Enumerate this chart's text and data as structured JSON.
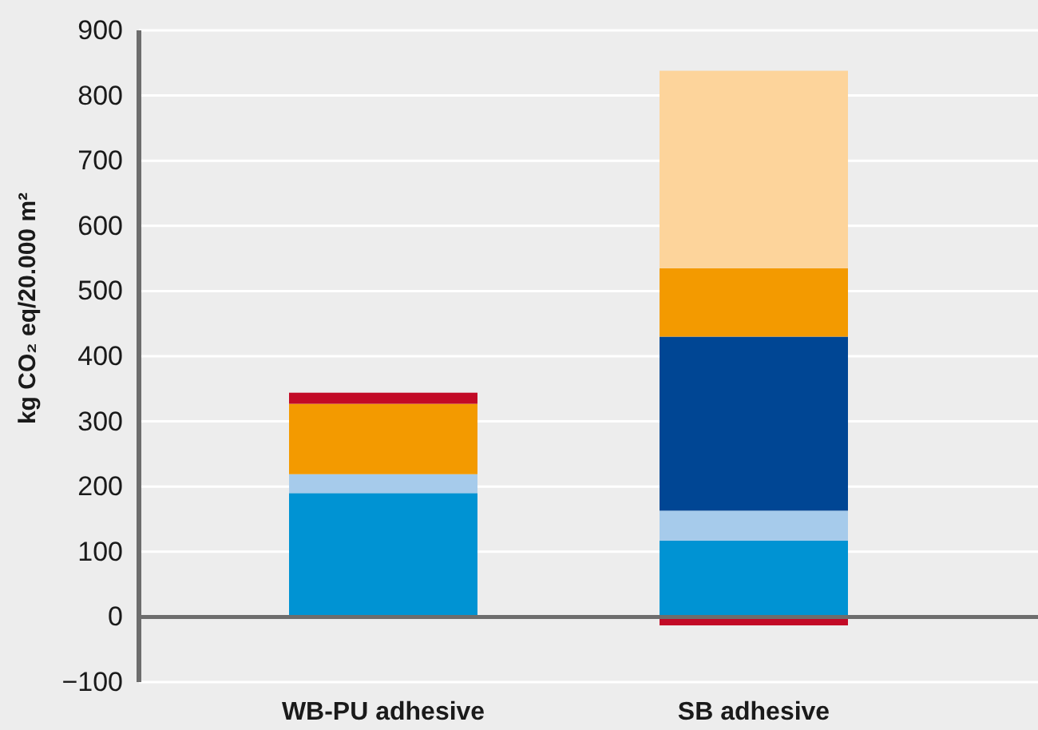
{
  "chart_data": {
    "type": "bar",
    "ylabel": "kg CO₂ eq/20.000 m²",
    "categories": [
      "WB-PU adhesive",
      "SB adhesive"
    ],
    "stacked": true,
    "series": [
      {
        "color": "#0093d3",
        "values": [
          190,
          117
        ]
      },
      {
        "color": "#a6cbeb",
        "values": [
          29,
          46
        ]
      },
      {
        "color": "#004694",
        "values": [
          0,
          267
        ]
      },
      {
        "color": "#f39a00",
        "values": [
          108,
          105
        ]
      },
      {
        "color": "#fdd49b",
        "values": [
          0,
          303
        ]
      },
      {
        "color": "#c20a26",
        "values": [
          17,
          -13
        ]
      }
    ],
    "ylim": [
      -100,
      900
    ],
    "yticks": [
      {
        "value": -100,
        "label": "−100"
      },
      0,
      100,
      200,
      300,
      400,
      500,
      600,
      700,
      800,
      900
    ],
    "grid": "y"
  }
}
